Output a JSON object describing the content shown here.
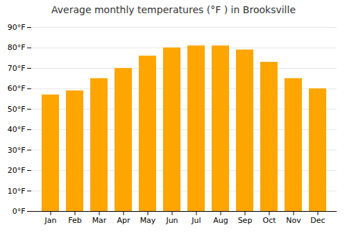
{
  "chart_data": {
    "type": "bar",
    "title": "Average monthly temperatures (°F ) in Brooksville",
    "categories": [
      "Jan",
      "Feb",
      "Mar",
      "Apr",
      "May",
      "Jun",
      "Jul",
      "Aug",
      "Sep",
      "Oct",
      "Nov",
      "Dec"
    ],
    "values": [
      57,
      59,
      65,
      70,
      76,
      80,
      81,
      81,
      79,
      73,
      65,
      60
    ],
    "color": "#FFA500",
    "ylim": [
      0,
      90
    ],
    "yticks": [
      {
        "value": 0,
        "label": "0°F"
      },
      {
        "value": 10,
        "label": "10°F"
      },
      {
        "value": 20,
        "label": "20°F"
      },
      {
        "value": 30,
        "label": "30°F"
      },
      {
        "value": 40,
        "label": "40°F"
      },
      {
        "value": 50,
        "label": "50°F"
      },
      {
        "value": 60,
        "label": "60°F"
      },
      {
        "value": 70,
        "label": "70°F"
      },
      {
        "value": 80,
        "label": "80°F"
      },
      {
        "value": 90,
        "label": "90°F"
      }
    ],
    "grid": true
  }
}
